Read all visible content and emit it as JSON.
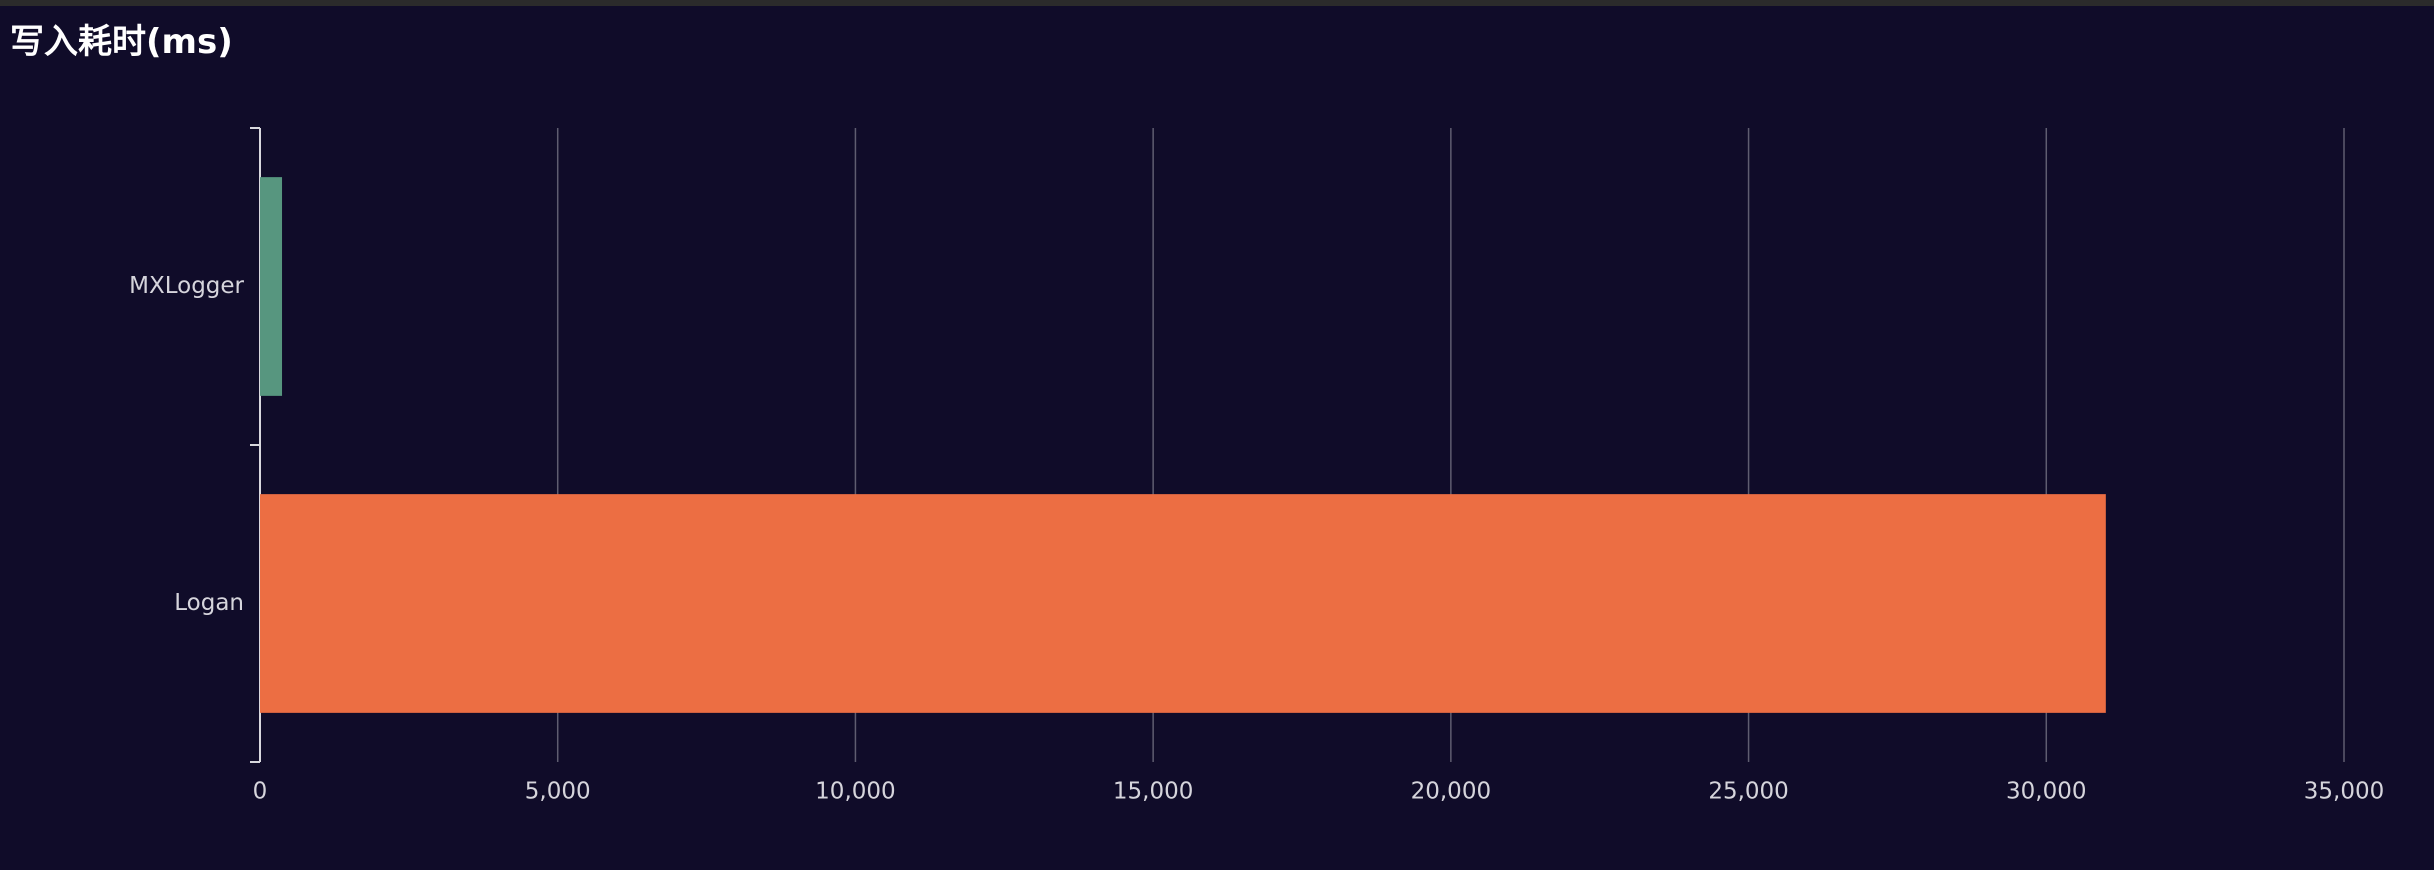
{
  "chart_data": {
    "type": "bar",
    "orientation": "horizontal",
    "title": "写入耗时(ms)",
    "categories": [
      "MXLogger",
      "Logan"
    ],
    "values": [
      370,
      31000
    ],
    "colors": [
      "#57967f",
      "#ec6e43"
    ],
    "xlim": [
      0,
      35000
    ],
    "xticks": [
      0,
      5000,
      10000,
      15000,
      20000,
      25000,
      30000,
      35000
    ],
    "xtick_labels": [
      "0",
      "5,000",
      "10,000",
      "15,000",
      "20,000",
      "25,000",
      "30,000",
      "35,000"
    ],
    "xlabel": "",
    "ylabel": "",
    "grid": "vertical",
    "legend": "none",
    "background": "#100c29",
    "text_color": "#ffffff",
    "gridline_color": "#5f5d70"
  }
}
